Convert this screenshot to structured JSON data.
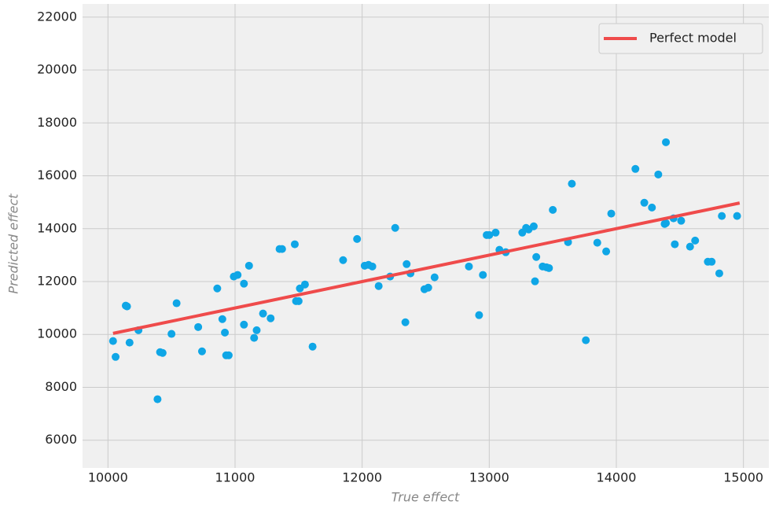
{
  "chart_data": {
    "type": "scatter",
    "xlabel": "True effect",
    "ylabel": "Predicted effect",
    "xlim": [
      9800,
      15200
    ],
    "ylim": [
      4950,
      22500
    ],
    "xticks": [
      10000,
      11000,
      12000,
      13000,
      14000,
      15000
    ],
    "yticks": [
      6000,
      8000,
      10000,
      12000,
      14000,
      16000,
      18000,
      20000,
      22000
    ],
    "grid": true,
    "legend": "upper right",
    "points": {
      "color": "#0fa6e6",
      "x": [
        10040,
        10060,
        10140,
        10150,
        10170,
        10240,
        10390,
        10410,
        10430,
        10500,
        10540,
        10710,
        10740,
        10860,
        10900,
        10920,
        10930,
        10950,
        10990,
        11020,
        11070,
        11070,
        11110,
        11150,
        11170,
        11220,
        11280,
        11350,
        11370,
        11470,
        11480,
        11500,
        11510,
        11550,
        11610,
        11850,
        11960,
        12020,
        12050,
        12080,
        12130,
        12220,
        12260,
        12340,
        12350,
        12380,
        12490,
        12520,
        12570,
        12840,
        12920,
        12950,
        12980,
        13000,
        13050,
        13080,
        13130,
        13260,
        13290,
        13310,
        13350,
        13370,
        13360,
        13420,
        13450,
        13470,
        13500,
        13620,
        13650,
        13760,
        13850,
        13920,
        13960,
        14150,
        14220,
        14280,
        14330,
        14380,
        14390,
        14390,
        14450,
        14460,
        14510,
        14580,
        14620,
        14720,
        14750,
        14810,
        14830,
        14950
      ],
      "values": [
        9750,
        9150,
        11090,
        11060,
        9690,
        10160,
        7550,
        9330,
        9300,
        10020,
        11180,
        10280,
        9360,
        11740,
        10580,
        10070,
        9210,
        9210,
        12190,
        12250,
        11920,
        10370,
        12600,
        9870,
        10160,
        10790,
        10610,
        13230,
        13230,
        13410,
        11260,
        11260,
        11740,
        11890,
        9540,
        12810,
        13610,
        12600,
        12630,
        12570,
        11830,
        12190,
        14030,
        10460,
        12660,
        12310,
        11710,
        11770,
        12160,
        12570,
        10730,
        12250,
        13760,
        13760,
        13850,
        13200,
        13110,
        13850,
        14030,
        13970,
        14090,
        12930,
        12010,
        12570,
        12540,
        12510,
        14710,
        13490,
        15700,
        9780,
        13470,
        13140,
        14570,
        16260,
        14980,
        14800,
        16050,
        14180,
        14210,
        17270,
        14390,
        13410,
        14300,
        13320,
        13550,
        12750,
        12750,
        12310,
        14480,
        14480
      ]
    },
    "lines": [
      {
        "name": "Perfect model",
        "color": "#ef4b4b",
        "x": [
          10040,
          14970
        ],
        "values": [
          10040,
          14970
        ]
      }
    ]
  }
}
